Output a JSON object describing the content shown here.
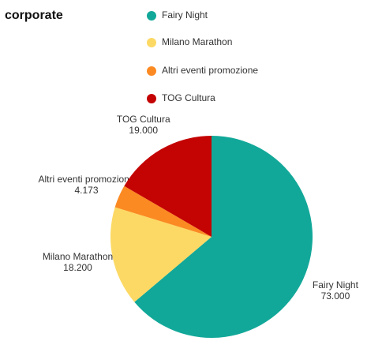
{
  "chart_data": {
    "type": "pie",
    "title": "corporate",
    "categories": [
      "Fairy Night",
      "Milano Marathon",
      "Altri eventi promozione",
      "TOG Cultura"
    ],
    "values": [
      73000,
      18200,
      4173,
      19000
    ],
    "value_labels": [
      "73.000",
      "18.200",
      "4.173",
      "19.000"
    ],
    "colors": [
      "#12a899",
      "#fcd964",
      "#fb8a22",
      "#c40303"
    ],
    "legend": "top"
  }
}
